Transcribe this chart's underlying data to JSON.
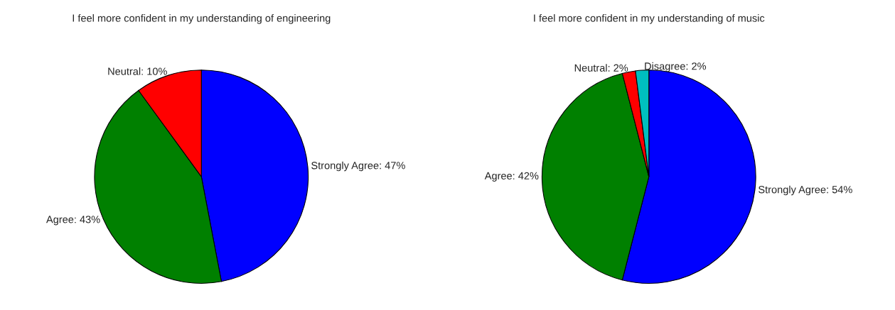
{
  "chart_data": [
    {
      "type": "pie",
      "title": "I feel more confident in my understanding of engineering",
      "categories": [
        "Strongly Agree: 47%",
        "Agree: 43%",
        "Neutral: 10%"
      ],
      "values": [
        47,
        43,
        10
      ],
      "colors": [
        "#0000ff",
        "#008000",
        "#ff0000"
      ]
    },
    {
      "type": "pie",
      "title": "I feel more confident in my understanding of music",
      "categories": [
        "Strongly Agree: 54%",
        "Agree: 42%",
        "Neutral: 2%",
        "Disagree: 2%"
      ],
      "values": [
        54,
        42,
        2,
        2
      ],
      "colors": [
        "#0000ff",
        "#008000",
        "#ff0000",
        "#00bfbf"
      ]
    }
  ]
}
